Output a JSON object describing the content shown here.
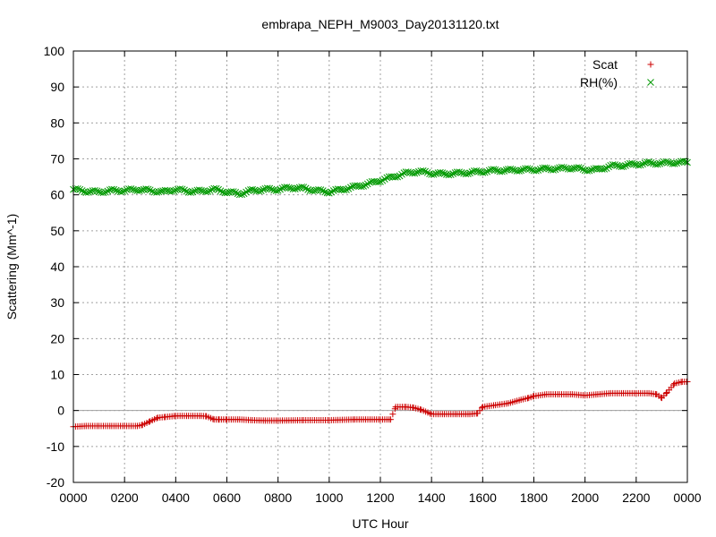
{
  "chart_data": {
    "type": "scatter",
    "title": "embrapa_NEPH_M9003_Day20131120.txt",
    "xlabel": "UTC Hour",
    "ylabel": "Scattering (Mm^-1)",
    "xlim": [
      0,
      24
    ],
    "ylim": [
      -20,
      100
    ],
    "x_tick_labels": [
      "0000",
      "0200",
      "0400",
      "0600",
      "0800",
      "1000",
      "1200",
      "1400",
      "1600",
      "1800",
      "2000",
      "2200",
      "0000"
    ],
    "y_tick_labels": [
      "-20",
      "-10",
      "0",
      "10",
      "20",
      "30",
      "40",
      "50",
      "60",
      "70",
      "80",
      "90",
      "100"
    ],
    "grid": true,
    "zero_line": true,
    "legend_position": "top-right",
    "series": [
      {
        "name": "Scat",
        "marker": "+",
        "color": "#cc0000",
        "x": [
          0.0,
          0.5,
          1.0,
          1.5,
          2.0,
          2.5,
          2.7,
          3.0,
          3.3,
          3.6,
          4.0,
          4.5,
          5.0,
          5.2,
          5.5,
          5.7,
          6.0,
          6.5,
          7.0,
          7.5,
          8.0,
          9.0,
          10.0,
          11.0,
          12.0,
          12.4,
          12.6,
          13.0,
          13.3,
          13.6,
          14.0,
          14.5,
          15.0,
          15.5,
          15.8,
          16.0,
          16.5,
          17.0,
          17.5,
          17.8,
          18.0,
          18.5,
          19.0,
          19.5,
          20.0,
          20.5,
          21.0,
          21.5,
          22.0,
          22.5,
          22.8,
          23.0,
          23.2,
          23.5,
          23.8,
          24.0
        ],
        "y": [
          -4.5,
          -4.3,
          -4.3,
          -4.3,
          -4.3,
          -4.3,
          -4.0,
          -3.0,
          -2.0,
          -1.8,
          -1.5,
          -1.5,
          -1.5,
          -1.6,
          -2.5,
          -2.5,
          -2.5,
          -2.5,
          -2.7,
          -2.8,
          -2.8,
          -2.7,
          -2.7,
          -2.5,
          -2.5,
          -2.5,
          1.0,
          1.0,
          0.8,
          0.2,
          -1.0,
          -1.0,
          -1.0,
          -1.0,
          -0.8,
          1.0,
          1.5,
          2.0,
          3.0,
          3.5,
          4.0,
          4.5,
          4.5,
          4.5,
          4.2,
          4.5,
          4.8,
          4.8,
          4.8,
          4.8,
          4.5,
          3.5,
          5.0,
          7.5,
          8.0,
          8.0
        ]
      },
      {
        "name": "RH(%)",
        "marker": "x",
        "color": "#009900",
        "x": [
          0.0,
          0.5,
          1.0,
          1.5,
          2.0,
          2.5,
          3.0,
          3.5,
          4.0,
          4.5,
          5.0,
          5.5,
          6.0,
          6.5,
          7.0,
          7.5,
          8.0,
          8.5,
          9.0,
          9.5,
          10.0,
          10.5,
          11.0,
          11.5,
          12.0,
          12.5,
          13.0,
          13.5,
          14.0,
          14.5,
          15.0,
          15.5,
          16.0,
          16.5,
          17.0,
          17.5,
          18.0,
          18.5,
          19.0,
          19.5,
          20.0,
          20.5,
          21.0,
          21.5,
          22.0,
          22.5,
          23.0,
          23.5,
          24.0
        ],
        "y": [
          61.5,
          61.0,
          60.8,
          61.2,
          61.2,
          61.5,
          61.2,
          60.8,
          61.5,
          61.0,
          61.0,
          61.5,
          60.8,
          60.3,
          61.2,
          61.5,
          61.5,
          62.0,
          61.8,
          61.2,
          60.8,
          61.5,
          62.2,
          63.0,
          64.0,
          65.0,
          66.0,
          66.5,
          66.0,
          65.8,
          66.0,
          66.2,
          66.5,
          66.8,
          66.8,
          67.0,
          67.0,
          67.2,
          67.3,
          67.5,
          67.0,
          67.0,
          68.0,
          68.2,
          68.5,
          68.8,
          68.8,
          69.0,
          69.0
        ]
      }
    ]
  }
}
